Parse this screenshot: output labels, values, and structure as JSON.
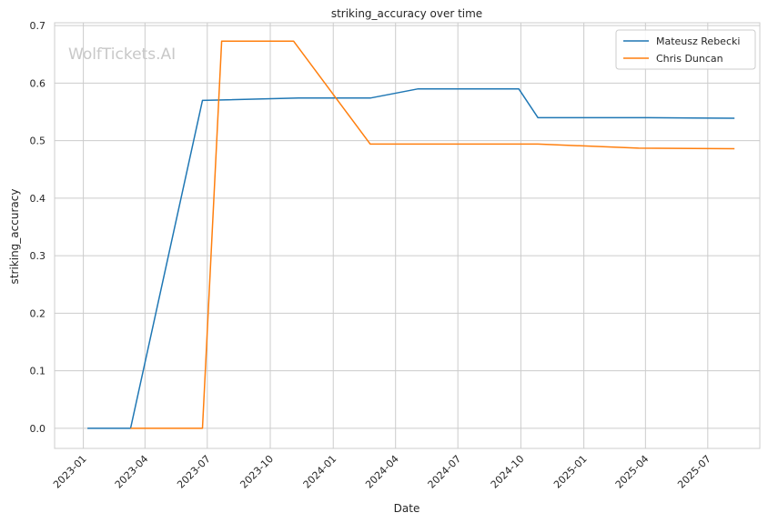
{
  "chart_data": {
    "type": "line",
    "title": "striking_accuracy over time",
    "xlabel": "Date",
    "ylabel": "striking_accuracy",
    "watermark": "WolfTickets.AI",
    "xlim": [
      "2022-11-20",
      "2025-09-15"
    ],
    "ylim": [
      -0.035,
      0.705
    ],
    "x_ticks": [
      "2023-01",
      "2023-04",
      "2023-07",
      "2023-10",
      "2024-01",
      "2024-04",
      "2024-07",
      "2024-10",
      "2025-01",
      "2025-04",
      "2025-07"
    ],
    "y_ticks": [
      "0.0",
      "0.1",
      "0.2",
      "0.3",
      "0.4",
      "0.5",
      "0.6",
      "0.7"
    ],
    "grid": true,
    "legend_position": "top-right",
    "series": [
      {
        "name": "Mateusz Rebecki",
        "color": "#1f77b4",
        "points": [
          {
            "x": "2023-01-07",
            "y": 0.0
          },
          {
            "x": "2023-03-11",
            "y": 0.0
          },
          {
            "x": "2023-06-24",
            "y": 0.57
          },
          {
            "x": "2023-11-11",
            "y": 0.574
          },
          {
            "x": "2024-02-24",
            "y": 0.574
          },
          {
            "x": "2024-05-04",
            "y": 0.59
          },
          {
            "x": "2024-09-28",
            "y": 0.59
          },
          {
            "x": "2024-10-26",
            "y": 0.54
          },
          {
            "x": "2025-04-05",
            "y": 0.54
          },
          {
            "x": "2025-08-09",
            "y": 0.539
          }
        ]
      },
      {
        "name": "Chris Duncan",
        "color": "#ff7f0e",
        "points": [
          {
            "x": "2023-03-11",
            "y": 0.0
          },
          {
            "x": "2023-06-24",
            "y": 0.0
          },
          {
            "x": "2023-07-22",
            "y": 0.673
          },
          {
            "x": "2023-11-04",
            "y": 0.673
          },
          {
            "x": "2024-02-24",
            "y": 0.494
          },
          {
            "x": "2024-10-26",
            "y": 0.494
          },
          {
            "x": "2025-03-22",
            "y": 0.487
          },
          {
            "x": "2025-08-09",
            "y": 0.486
          }
        ]
      }
    ]
  }
}
